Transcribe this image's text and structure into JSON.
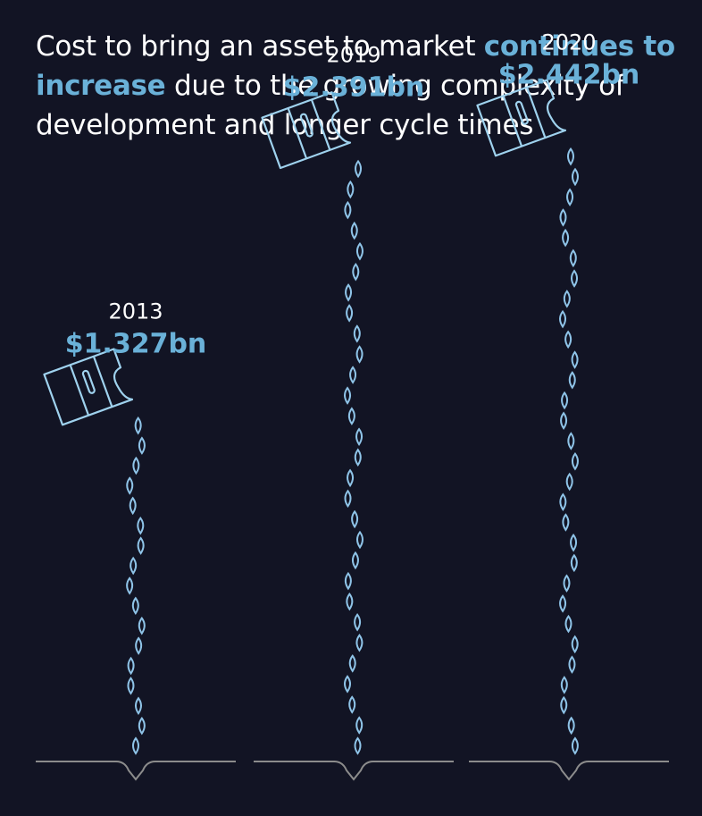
{
  "headline": {
    "part1": "Cost to bring an asset to market ",
    "highlight": "continues to increase",
    "part2": " due to the growing complexity of development and longer cycle times"
  },
  "colors": {
    "background": "#121424",
    "accent": "#6ab1d8",
    "icon_stroke": "#9fd2ee",
    "drop_stroke": "#8fc4e8",
    "ground": "#8c8c8c",
    "text": "#ffffff"
  },
  "chart_data": {
    "type": "bar",
    "categories": [
      "2013",
      "2019",
      "2020"
    ],
    "values": [
      1.327,
      2.391,
      2.442
    ],
    "value_labels": [
      "$1.327bn",
      "$2.391bn",
      "$2.442bn"
    ],
    "title": "Cost to bring an asset to market continues to increase due to the growing complexity of development and longer cycle times",
    "xlabel": "",
    "ylabel": "",
    "unit": "$bn",
    "encoding": "pouring wallet icon with stream of drops; taller stream = higher cost"
  }
}
